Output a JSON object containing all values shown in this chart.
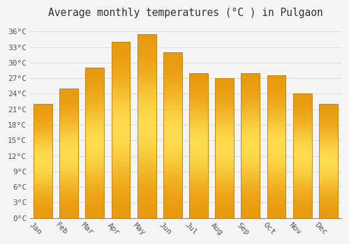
{
  "title": "Average monthly temperatures (°C ) in Pulgaon",
  "months": [
    "Jan",
    "Feb",
    "Mar",
    "Apr",
    "May",
    "Jun",
    "Jul",
    "Aug",
    "Sep",
    "Oct",
    "Nov",
    "Dec"
  ],
  "values": [
    22.0,
    25.0,
    29.0,
    34.0,
    35.5,
    32.0,
    28.0,
    27.0,
    28.0,
    27.5,
    24.0,
    22.0
  ],
  "bar_color_center": "#FFD966",
  "bar_color_edge": "#E8960A",
  "bar_border_color": "#C8850A",
  "background_color": "#F5F5F5",
  "grid_color": "#DDDDDD",
  "ylabel_ticks": [
    0,
    3,
    6,
    9,
    12,
    15,
    18,
    21,
    24,
    27,
    30,
    33,
    36
  ],
  "ylim": [
    0,
    37.5
  ],
  "title_fontsize": 10.5,
  "tick_fontsize": 8,
  "font_family": "monospace",
  "xlabel_rotation": -45
}
